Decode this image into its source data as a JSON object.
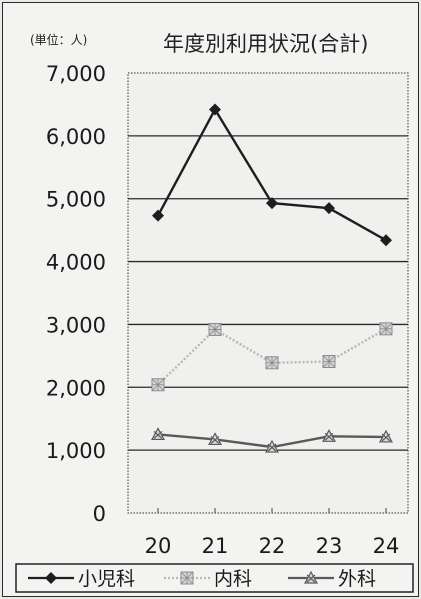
{
  "chart_data": {
    "type": "line",
    "title": "年度別利用状況(合計)",
    "unit_label": "(単位：人)",
    "categories": [
      "20",
      "21",
      "22",
      "23",
      "24"
    ],
    "ylim": [
      0,
      7000
    ],
    "y_ticks": [
      "0",
      "1,000",
      "2,000",
      "3,000",
      "4,000",
      "5,000",
      "6,000",
      "7,000"
    ],
    "grid": true,
    "legend_position": "bottom",
    "series": [
      {
        "name": "小児科",
        "values": [
          4730,
          6420,
          4930,
          4850,
          4340
        ],
        "color": "#1e1e1e",
        "marker": "diamond",
        "line_style": "solid"
      },
      {
        "name": "内科",
        "values": [
          2040,
          2920,
          2390,
          2410,
          2930
        ],
        "color": "#b8b8b8",
        "marker": "checker-square",
        "line_style": "dotted"
      },
      {
        "name": "外科",
        "values": [
          1250,
          1170,
          1050,
          1220,
          1210
        ],
        "color": "#5a5a5a",
        "marker": "cross-triangle",
        "line_style": "solid"
      }
    ]
  }
}
